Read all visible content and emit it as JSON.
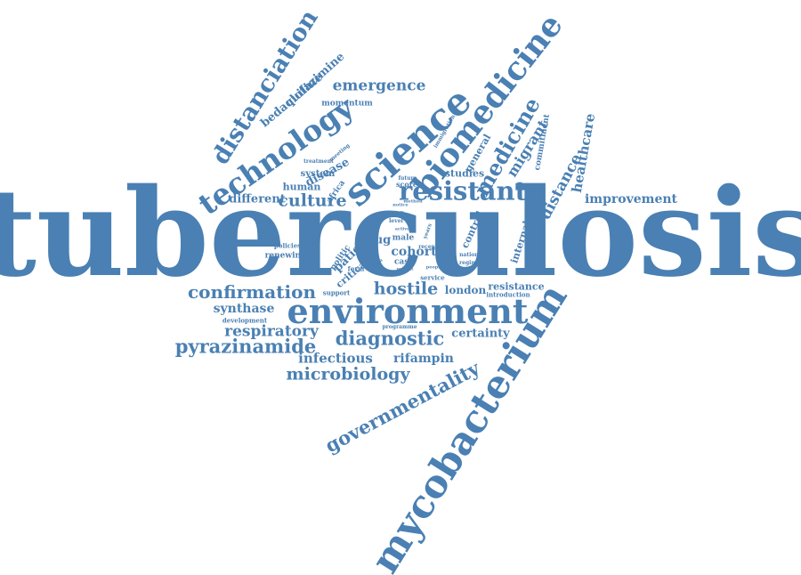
{
  "color": "#4a80b3",
  "words": [
    {
      "id": "tuberculosis",
      "text": "tuberculosis"
    },
    {
      "id": "mycobacterium",
      "text": "mycobacterium"
    },
    {
      "id": "environment",
      "text": "environment"
    },
    {
      "id": "science",
      "text": "science"
    },
    {
      "id": "biomedicine",
      "text": "biomedicine"
    },
    {
      "id": "technology",
      "text": "technology"
    },
    {
      "id": "distanciation",
      "text": "distanciation"
    },
    {
      "id": "resistant",
      "text": "resistant"
    },
    {
      "id": "governmentality",
      "text": "governmentality"
    },
    {
      "id": "medicine",
      "text": "medicine"
    },
    {
      "id": "diagnostic",
      "text": "diagnostic"
    },
    {
      "id": "pyrazinamide",
      "text": "pyrazinamide"
    },
    {
      "id": "confirmation",
      "text": "confirmation"
    },
    {
      "id": "microbiology",
      "text": "microbiology"
    },
    {
      "id": "hostile",
      "text": "hostile"
    },
    {
      "id": "culture",
      "text": "culture"
    },
    {
      "id": "distance",
      "text": "distance"
    },
    {
      "id": "respiratory",
      "text": "respiratory"
    },
    {
      "id": "emergence",
      "text": "emergence"
    },
    {
      "id": "healthcare",
      "text": "healthcare"
    },
    {
      "id": "improvement",
      "text": "improvement"
    },
    {
      "id": "bedaquiline",
      "text": "bedaquiline"
    },
    {
      "id": "clofazimine",
      "text": "clofazimine"
    },
    {
      "id": "migrant",
      "text": "migrant"
    },
    {
      "id": "infectious",
      "text": "infectious"
    },
    {
      "id": "rifampin",
      "text": "rifampin"
    },
    {
      "id": "synthase",
      "text": "synthase"
    },
    {
      "id": "different",
      "text": "different"
    },
    {
      "id": "disease",
      "text": "disease"
    },
    {
      "id": "cohort",
      "text": "cohort"
    },
    {
      "id": "patient",
      "text": "patient"
    },
    {
      "id": "drug",
      "text": "drug"
    },
    {
      "id": "certainty",
      "text": "certainty"
    },
    {
      "id": "resistance",
      "text": "resistance"
    },
    {
      "id": "london",
      "text": "london"
    },
    {
      "id": "internal",
      "text": "internal"
    },
    {
      "id": "control",
      "text": "control"
    },
    {
      "id": "studies",
      "text": "studies"
    },
    {
      "id": "general",
      "text": "general"
    },
    {
      "id": "human",
      "text": "human"
    },
    {
      "id": "system",
      "text": "system"
    },
    {
      "id": "critical",
      "text": "critical"
    },
    {
      "id": "commitment",
      "text": "commitment"
    },
    {
      "id": "africa",
      "text": "africa"
    },
    {
      "id": "momentum",
      "text": "momentum"
    },
    {
      "id": "renewing",
      "text": "renewing"
    },
    {
      "id": "policies",
      "text": "policies"
    },
    {
      "id": "politic",
      "text": "politic"
    },
    {
      "id": "life",
      "text": "life"
    },
    {
      "id": "male",
      "text": "male"
    },
    {
      "id": "case",
      "text": "case"
    },
    {
      "id": "score",
      "text": "score"
    },
    {
      "id": "support",
      "text": "support"
    },
    {
      "id": "development",
      "text": "development"
    },
    {
      "id": "programme",
      "text": "programme"
    },
    {
      "id": "form",
      "text": "form"
    },
    {
      "id": "service",
      "text": "service"
    },
    {
      "id": "introduction",
      "text": "introduction"
    },
    {
      "id": "treatment",
      "text": "treatment"
    },
    {
      "id": "meeting",
      "text": "meeting"
    },
    {
      "id": "immigration",
      "text": "immigration"
    },
    {
      "id": "future",
      "text": "future"
    },
    {
      "id": "national",
      "text": "national"
    },
    {
      "id": "regimen",
      "text": "regimen"
    },
    {
      "id": "level",
      "text": "level"
    },
    {
      "id": "active",
      "text": "active"
    },
    {
      "id": "method",
      "text": "method"
    },
    {
      "id": "years",
      "text": "years"
    },
    {
      "id": "recent",
      "text": "recent"
    },
    {
      "id": "result",
      "text": "result"
    },
    {
      "id": "people",
      "text": "people"
    },
    {
      "id": "health",
      "text": "health"
    },
    {
      "id": "weight",
      "text": "weight"
    },
    {
      "id": "notice",
      "text": "notice"
    }
  ]
}
